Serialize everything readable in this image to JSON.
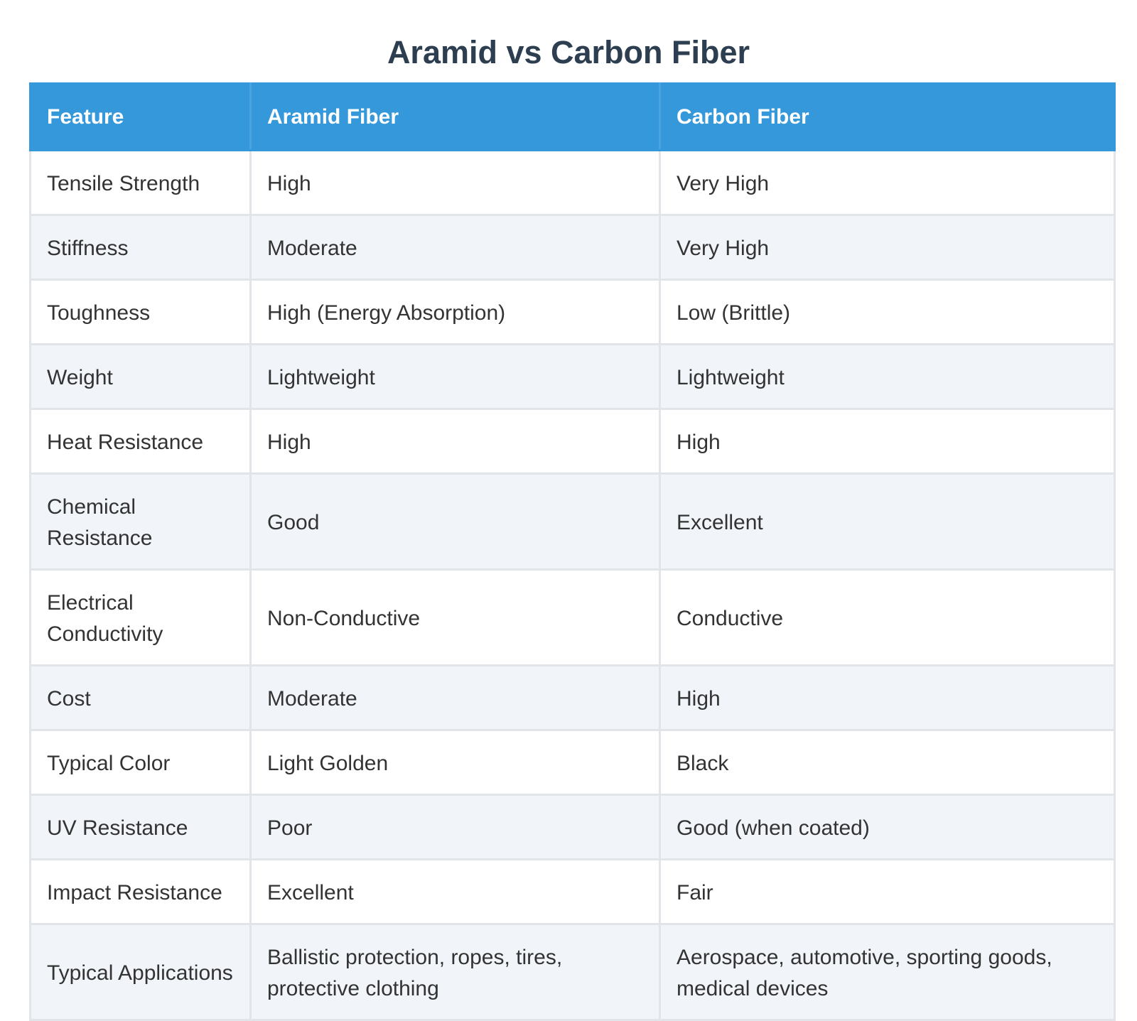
{
  "title": "Aramid vs Carbon Fiber",
  "table": {
    "headers": [
      "Feature",
      "Aramid Fiber",
      "Carbon Fiber"
    ],
    "rows": [
      [
        "Tensile Strength",
        "High",
        "Very High"
      ],
      [
        "Stiffness",
        "Moderate",
        "Very High"
      ],
      [
        "Toughness",
        "High (Energy Absorption)",
        "Low (Brittle)"
      ],
      [
        "Weight",
        "Lightweight",
        "Lightweight"
      ],
      [
        "Heat Resistance",
        "High",
        "High"
      ],
      [
        "Chemical Resistance",
        "Good",
        "Excellent"
      ],
      [
        "Electrical Conductivity",
        "Non-Conductive",
        "Conductive"
      ],
      [
        "Cost",
        "Moderate",
        "High"
      ],
      [
        "Typical Color",
        "Light Golden",
        "Black"
      ],
      [
        "UV Resistance",
        "Poor",
        "Good (when coated)"
      ],
      [
        "Impact Resistance",
        "Excellent",
        "Fair"
      ],
      [
        "Typical Applications",
        "Ballistic protection, ropes, tires, protective clothing",
        "Aerospace, automotive, sporting goods, medical devices"
      ]
    ]
  },
  "colors": {
    "title": "#2c3e50",
    "header_bg": "#3498db",
    "header_text": "#ffffff",
    "row_alt_bg": "#f1f4f9",
    "border": "#e1e4e8",
    "body_text": "#333333"
  }
}
